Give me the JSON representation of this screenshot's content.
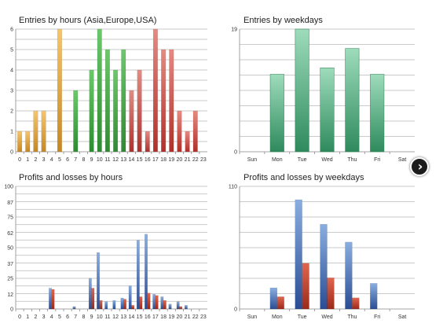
{
  "colors": {
    "amber": "#e0a53a",
    "green": "#4aa84a",
    "red": "#c0504d",
    "teal": "#3c9a6a",
    "blue": "#3e64a8",
    "loss": "#b33a2a",
    "next_button": "#1c1c1c"
  },
  "icons": {
    "next": "chevron-right-icon"
  },
  "chart_data": [
    {
      "type": "bar",
      "title": "Entries by hours (Asia,Europe,USA)",
      "categories": [
        "0",
        "1",
        "2",
        "3",
        "4",
        "5",
        "6",
        "7",
        "8",
        "9",
        "10",
        "11",
        "12",
        "13",
        "14",
        "15",
        "16",
        "17",
        "18",
        "19",
        "20",
        "21",
        "22",
        "23"
      ],
      "values": [
        1,
        1,
        2,
        2,
        0,
        6,
        0,
        3,
        0,
        4,
        6,
        5,
        4,
        5,
        3,
        4,
        1,
        6,
        5,
        5,
        2,
        1,
        2,
        0
      ],
      "bar_colors": [
        "amber",
        "amber",
        "amber",
        "amber",
        "amber",
        "amber",
        "green",
        "green",
        "green",
        "green",
        "green",
        "green",
        "green",
        "green",
        "red",
        "red",
        "red",
        "red",
        "red",
        "red",
        "red",
        "red",
        "red",
        "red"
      ],
      "yticks": [
        "0",
        "1",
        "2",
        "3",
        "4",
        "5",
        "6"
      ],
      "ylim": [
        0,
        6
      ],
      "grid": true
    },
    {
      "type": "bar",
      "title": "Entries by weekdays",
      "categories": [
        "Sun",
        "Mon",
        "Tue",
        "Wed",
        "Thu",
        "Fri",
        "Sat"
      ],
      "values": [
        0,
        12,
        19,
        13,
        16,
        12,
        0
      ],
      "yticks": [
        "0",
        "19"
      ],
      "ylim": [
        0,
        19
      ],
      "grid": true
    },
    {
      "type": "bar",
      "title": "Profits and losses by hours",
      "categories": [
        "0",
        "1",
        "2",
        "3",
        "4",
        "5",
        "6",
        "7",
        "8",
        "9",
        "10",
        "11",
        "12",
        "13",
        "14",
        "15",
        "16",
        "17",
        "18",
        "19",
        "20",
        "21",
        "22",
        "23"
      ],
      "series": [
        {
          "key": "profit",
          "values": [
            0,
            0,
            0,
            0,
            17,
            0,
            0,
            2,
            0,
            25,
            46,
            6,
            7,
            9,
            19,
            56,
            61,
            12,
            10,
            4,
            6,
            3,
            0,
            0
          ]
        },
        {
          "key": "loss",
          "values": [
            0,
            0,
            0,
            0,
            16,
            0,
            0,
            0,
            0,
            17,
            7,
            0,
            0,
            8,
            3,
            10,
            13,
            11,
            7,
            0,
            2,
            0,
            0,
            0
          ]
        }
      ],
      "yticks": [
        "0",
        "12",
        "25",
        "37",
        "50",
        "62",
        "75",
        "87",
        "100"
      ],
      "ylim": [
        0,
        100
      ],
      "grid": true
    },
    {
      "type": "bar",
      "title": "Profits and losses by weekdays",
      "categories": [
        "Sun",
        "Mon",
        "Tue",
        "Wed",
        "Thu",
        "Fri",
        "Sat"
      ],
      "series": [
        {
          "key": "profit",
          "values": [
            0,
            19,
            98,
            76,
            60,
            23,
            0
          ]
        },
        {
          "key": "loss",
          "values": [
            0,
            11,
            41,
            28,
            10,
            0,
            0
          ]
        }
      ],
      "yticks": [
        "0",
        "110"
      ],
      "ylim": [
        0,
        110
      ],
      "grid": true
    }
  ]
}
